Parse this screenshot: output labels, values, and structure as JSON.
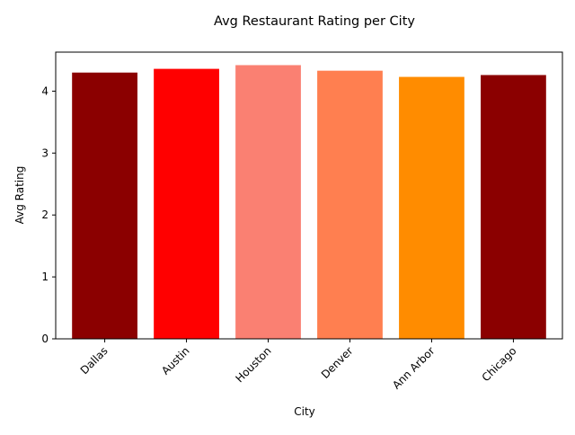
{
  "chart_data": {
    "type": "bar",
    "title": "Avg Restaurant Rating per City",
    "xlabel": "City",
    "ylabel": "Avg Rating",
    "categories": [
      "Dallas",
      "Austin",
      "Houston",
      "Denver",
      "Ann Arbor",
      "Chicago"
    ],
    "values": [
      4.3,
      4.36,
      4.42,
      4.33,
      4.23,
      4.26
    ],
    "colors": [
      "#8b0000",
      "#ff0000",
      "#fa8072",
      "#ff7f50",
      "#ff8c00",
      "#8b0000"
    ],
    "ylim": [
      0,
      4.63
    ],
    "yticks": [
      "0",
      "1",
      "2",
      "3",
      "4"
    ],
    "grid": false,
    "legend": "none"
  }
}
